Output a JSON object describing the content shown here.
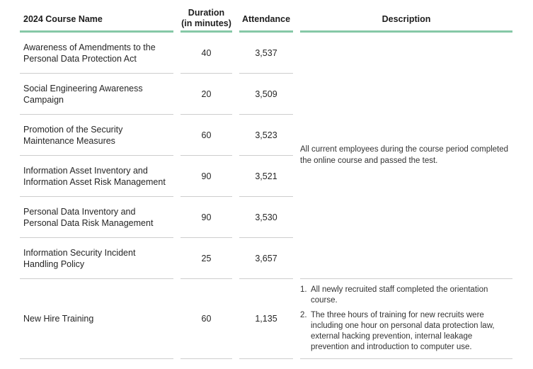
{
  "table": {
    "headers": {
      "course": "2024 Course Name",
      "duration_line1": "Duration",
      "duration_line2": "(in minutes)",
      "attendance": "Attendance",
      "description": "Description"
    },
    "rows": [
      {
        "name": "Awareness of Amendments to the Personal Data Protection Act",
        "duration": "40",
        "attendance": "3,537"
      },
      {
        "name": "Social Engineering Awareness Campaign",
        "duration": "20",
        "attendance": "3,509"
      },
      {
        "name": "Promotion of the Security Maintenance Measures",
        "duration": "60",
        "attendance": "3,523"
      },
      {
        "name": "Information Asset Inventory and Information Asset Risk Management",
        "duration": "90",
        "attendance": "3,521"
      },
      {
        "name": "Personal Data Inventory and Personal Data Risk Management",
        "duration": "90",
        "attendance": "3,530"
      },
      {
        "name": "Information Security Incident Handling Policy",
        "duration": "25",
        "attendance": "3,657"
      },
      {
        "name": "New Hire Training",
        "duration": "60",
        "attendance": "1,135"
      }
    ],
    "descriptions": {
      "group1": "All current employees during the course period completed the online course and passed the test.",
      "group2_markers": [
        "1.",
        "2."
      ],
      "group2_items": [
        "All newly recruited staff completed the orientation course.",
        "The three hours of training for new recruits were including one hour on personal data protection law, external hacking prevention, internal leakage prevention and introduction to computer use."
      ]
    },
    "colors": {
      "accent_green": "#86c8a7",
      "separator_gray": "#cdcdcd"
    }
  }
}
